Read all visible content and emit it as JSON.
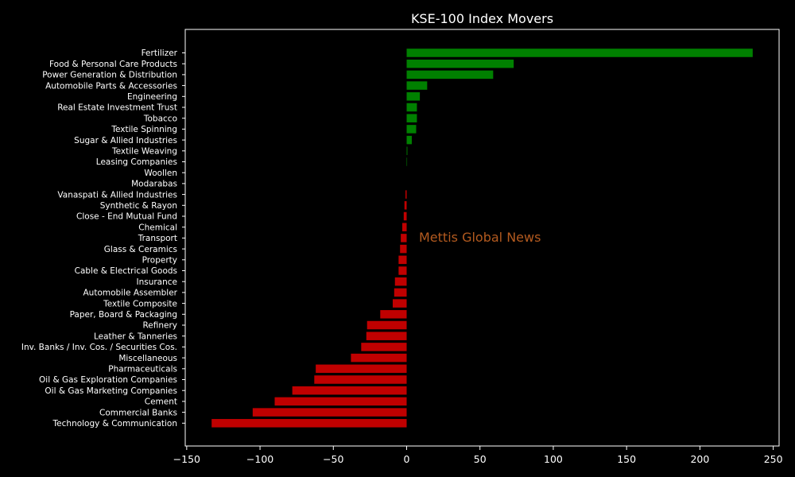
{
  "chart_data": {
    "type": "bar",
    "orientation": "horizontal",
    "title": "KSE-100 Index Movers",
    "xlabel": "",
    "ylabel": "",
    "xlim": [
      -151,
      254
    ],
    "xticks": [
      -150,
      -100,
      -50,
      0,
      50,
      100,
      150,
      200,
      250
    ],
    "xtick_labels": [
      "−150",
      "−100",
      "−50",
      "0",
      "50",
      "100",
      "150",
      "200",
      "250"
    ],
    "grid": false,
    "legend": "none",
    "positive_color": "#008000",
    "negative_color": "#c00000",
    "background_color": "#000000",
    "categories": [
      "Fertilizer",
      "Food & Personal Care Products",
      "Power Generation & Distribution",
      "Automobile Parts & Accessories",
      "Engineering",
      "Real Estate Investment Trust",
      "Tobacco",
      "Textile Spinning",
      "Sugar & Allied Industries",
      "Textile Weaving",
      "Leasing Companies",
      "Woollen",
      "Modarabas",
      "Vanaspati & Allied Industries",
      "Synthetic & Rayon",
      "Close - End Mutual Fund",
      "Chemical",
      "Transport",
      "Glass & Ceramics",
      "Property",
      "Cable & Electrical Goods",
      "Insurance",
      "Automobile Assembler",
      "Textile Composite",
      "Paper, Board & Packaging",
      "Refinery",
      "Leather & Tanneries",
      "Inv. Banks / Inv. Cos. / Securities Cos.",
      "Miscellaneous",
      "Pharmaceuticals",
      "Oil & Gas Exploration Companies",
      "Oil & Gas Marketing Companies",
      "Cement",
      "Commercial Banks",
      "Technology & Communication"
    ],
    "values": [
      236,
      73,
      59,
      14,
      9,
      7,
      7,
      6.5,
      3.5,
      0.5,
      0.3,
      0,
      0,
      -0.8,
      -1.5,
      -2,
      -3,
      -4,
      -4.5,
      -5.5,
      -5.5,
      -8,
      -8.5,
      -9.5,
      -18,
      -27,
      -27.5,
      -31,
      -38,
      -62,
      -63,
      -78,
      -90,
      -105,
      -133
    ],
    "annotation": {
      "text": "Mettis Global News",
      "color": "#b35a1f"
    }
  }
}
